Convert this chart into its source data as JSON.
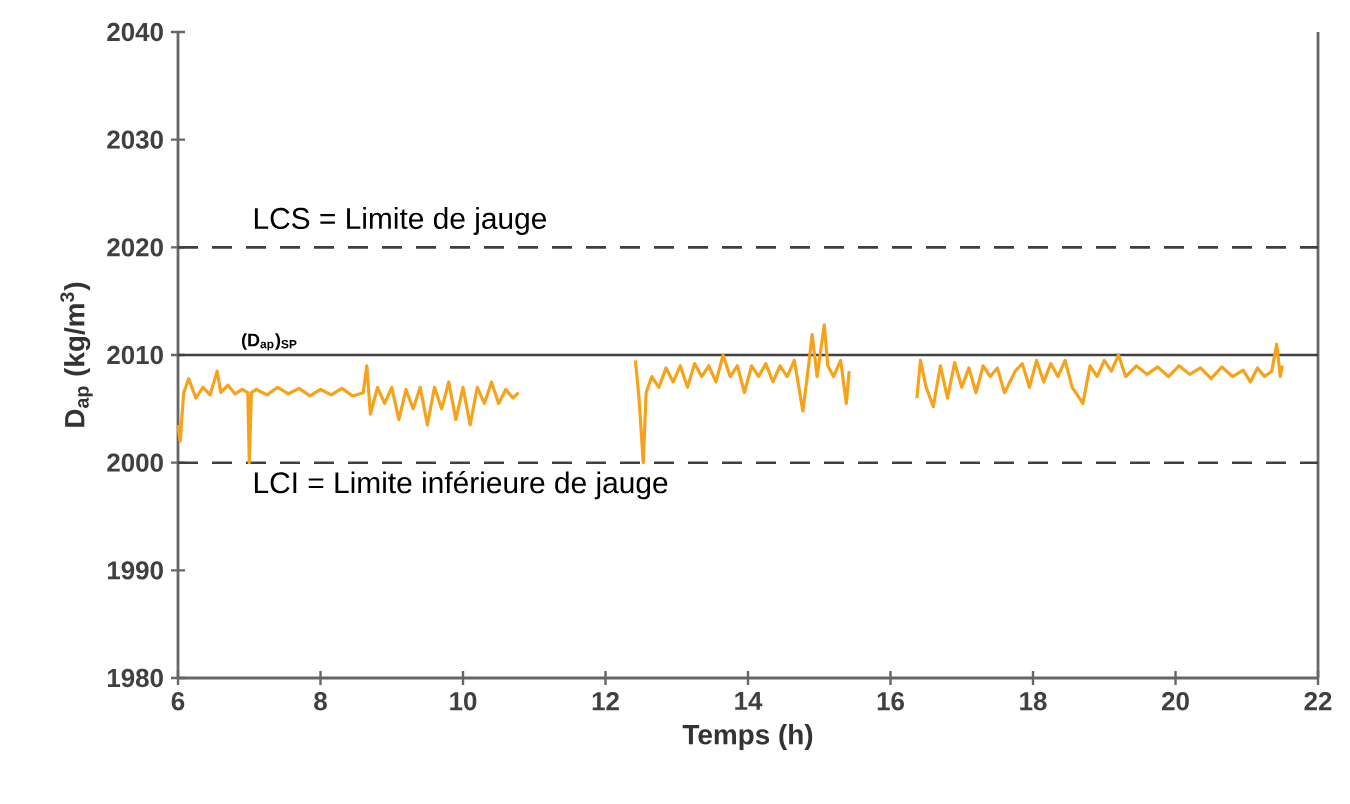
{
  "chart_data": {
    "type": "line",
    "xlabel": "Temps (h)",
    "ylabel": "D$_{ap}$ (kg/m$^{3}$)",
    "xlim": [
      6,
      22
    ],
    "xticks": [
      6,
      8,
      10,
      12,
      14,
      16,
      18,
      20,
      22
    ],
    "ylim": [
      1980,
      2040
    ],
    "yticks": [
      1980,
      1990,
      2000,
      2010,
      2020,
      2030,
      2040
    ],
    "grid": false,
    "marker": "none",
    "line_style": "solid",
    "ref_lines": [
      {
        "axis": "y",
        "value": 2020,
        "label": "LCS = Limite de jauge",
        "color": "#404040",
        "line_style": "dashed"
      },
      {
        "axis": "y",
        "value": 2010,
        "label": "(D$_{ap}$)$_{SP}$",
        "color": "#404040",
        "line_style": "solid"
      },
      {
        "axis": "y",
        "value": 2000,
        "label": "LCI = Limite inférieure de jauge",
        "color": "#404040",
        "line_style": "dashed"
      }
    ],
    "x": [
      6.0,
      6.03,
      6.08,
      6.15,
      6.25,
      6.35,
      6.45,
      6.55,
      6.6,
      6.7,
      6.8,
      6.9,
      6.98,
      7.0,
      7.03,
      7.1,
      7.25,
      7.4,
      7.55,
      7.7,
      7.85,
      8.0,
      8.15,
      8.3,
      8.45,
      8.6,
      8.65,
      8.7,
      8.8,
      8.9,
      9.0,
      9.1,
      9.2,
      9.3,
      9.4,
      9.5,
      9.6,
      9.7,
      9.8,
      9.9,
      10.0,
      10.1,
      10.2,
      10.3,
      10.4,
      10.5,
      10.6,
      10.7,
      10.78,
      11.5,
      12.42,
      12.47,
      12.53,
      12.57,
      12.65,
      12.75,
      12.85,
      12.95,
      13.05,
      13.15,
      13.25,
      13.35,
      13.45,
      13.55,
      13.65,
      13.75,
      13.85,
      13.95,
      14.05,
      14.15,
      14.25,
      14.35,
      14.45,
      14.55,
      14.65,
      14.77,
      14.85,
      14.9,
      14.97,
      15.07,
      15.12,
      15.2,
      15.3,
      15.38,
      15.42,
      16.0,
      16.37,
      16.42,
      16.5,
      16.6,
      16.7,
      16.8,
      16.9,
      17.0,
      17.1,
      17.2,
      17.3,
      17.4,
      17.5,
      17.6,
      17.75,
      17.85,
      17.95,
      18.05,
      18.15,
      18.25,
      18.35,
      18.45,
      18.55,
      18.7,
      18.8,
      18.9,
      19.0,
      19.1,
      19.2,
      19.3,
      19.45,
      19.6,
      19.75,
      19.9,
      20.05,
      20.2,
      20.35,
      20.5,
      20.65,
      20.8,
      20.95,
      21.05,
      21.15,
      21.25,
      21.35,
      21.42,
      21.47,
      21.5
    ],
    "series": [
      {
        "color": "#f7a21b",
        "values": [
          2003.5,
          2002.0,
          2006.5,
          2007.8,
          2006.0,
          2007.0,
          2006.3,
          2008.5,
          2006.5,
          2007.2,
          2006.4,
          2006.8,
          2006.5,
          2000.0,
          2006.5,
          2006.8,
          2006.3,
          2007.0,
          2006.4,
          2006.9,
          2006.2,
          2006.8,
          2006.3,
          2006.9,
          2006.2,
          2006.5,
          2009.0,
          2004.5,
          2007.0,
          2005.5,
          2007.0,
          2004.0,
          2006.8,
          2005.0,
          2007.0,
          2003.5,
          2007.0,
          2005.0,
          2007.5,
          2004.0,
          2007.0,
          2003.5,
          2007.0,
          2005.5,
          2007.5,
          2005.5,
          2006.8,
          2006.0,
          2006.5,
          null,
          2009.5,
          2006.0,
          2000.0,
          2006.5,
          2008.0,
          2007.0,
          2008.8,
          2007.5,
          2009.0,
          2007.0,
          2009.2,
          2008.0,
          2009.0,
          2007.5,
          2010.0,
          2008.0,
          2009.0,
          2006.5,
          2009.0,
          2008.0,
          2009.2,
          2007.5,
          2009.0,
          2008.0,
          2009.5,
          2004.8,
          2009.0,
          2011.9,
          2008.0,
          2012.8,
          2009.0,
          2008.0,
          2009.5,
          2005.5,
          2008.5,
          null,
          2006.0,
          2009.5,
          2007.0,
          2005.2,
          2009.0,
          2006.0,
          2009.3,
          2007.0,
          2008.8,
          2006.5,
          2009.0,
          2008.0,
          2008.8,
          2006.5,
          2008.5,
          2009.2,
          2007.0,
          2009.5,
          2007.5,
          2009.2,
          2008.0,
          2009.5,
          2007.0,
          2005.5,
          2009.0,
          2008.0,
          2009.5,
          2008.5,
          2010.0,
          2008.0,
          2009.0,
          2008.2,
          2008.9,
          2008.0,
          2009.0,
          2008.2,
          2008.8,
          2007.8,
          2008.9,
          2008.0,
          2008.6,
          2007.5,
          2008.8,
          2008.0,
          2008.5,
          2011.0,
          2008.0,
          2009.0
        ]
      }
    ]
  }
}
